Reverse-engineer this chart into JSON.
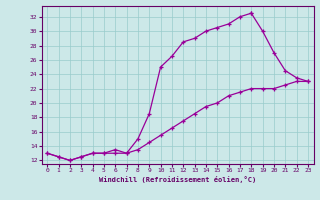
{
  "xlabel": "Windchill (Refroidissement éolien,°C)",
  "background_color": "#cce8e8",
  "grid_color": "#99cccc",
  "line_color": "#990099",
  "xlim": [
    -0.5,
    23.5
  ],
  "ylim": [
    11.5,
    33.5
  ],
  "xticks": [
    0,
    1,
    2,
    3,
    4,
    5,
    6,
    7,
    8,
    9,
    10,
    11,
    12,
    13,
    14,
    15,
    16,
    17,
    18,
    19,
    20,
    21,
    22,
    23
  ],
  "yticks": [
    12,
    14,
    16,
    18,
    20,
    22,
    24,
    26,
    28,
    30,
    32
  ],
  "line_bottom_x": [
    0,
    1,
    2,
    3,
    4,
    5,
    6,
    7,
    8,
    9,
    10,
    11,
    12,
    13,
    14,
    15,
    16,
    17,
    18,
    19,
    20,
    21,
    22,
    23
  ],
  "line_bottom_y": [
    13,
    12.5,
    12,
    12.5,
    13,
    13,
    13,
    13,
    13.5,
    14.5,
    15.5,
    16.5,
    17.5,
    18.5,
    19.5,
    20,
    21,
    21.5,
    22,
    22,
    22,
    22.5,
    23,
    23
  ],
  "line_steep_x": [
    0,
    1,
    2,
    3,
    4,
    5,
    6,
    7,
    8,
    9,
    10,
    11,
    12,
    13,
    14,
    15,
    16,
    17,
    18
  ],
  "line_steep_y": [
    13,
    12.5,
    12,
    12.5,
    13,
    13,
    13.5,
    13,
    15,
    18.5,
    25,
    26.5,
    28.5,
    29,
    30,
    30.5,
    31,
    32,
    32.5
  ],
  "line_return_x": [
    18,
    19,
    20,
    21,
    22,
    23
  ],
  "line_return_y": [
    32.5,
    30,
    27,
    24.5,
    23.5,
    23
  ]
}
